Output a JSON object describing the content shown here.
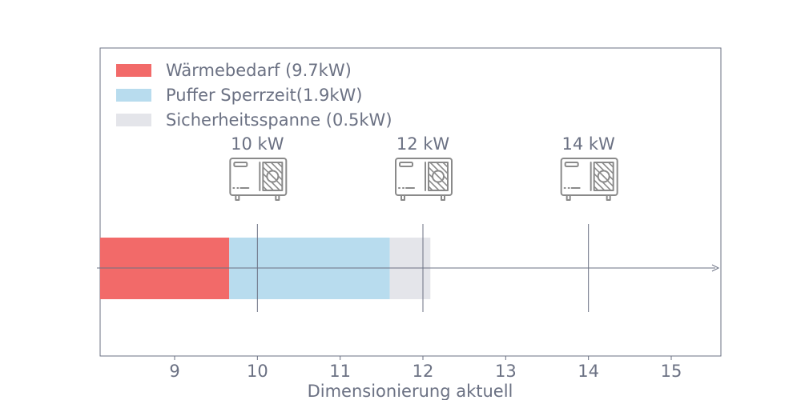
{
  "chart_data": {
    "type": "bar",
    "orientation": "horizontal",
    "stacked": true,
    "xlabel": "Dimensionierung aktuell",
    "ylabel": "",
    "xlim": [
      8.1,
      15.6
    ],
    "xticks": [
      {
        "value": 9,
        "label": "9"
      },
      {
        "value": 10,
        "label": "10"
      },
      {
        "value": 11,
        "label": "11"
      },
      {
        "value": 12,
        "label": "12"
      },
      {
        "value": 13,
        "label": "13"
      },
      {
        "value": 14,
        "label": "14"
      },
      {
        "value": 15,
        "label": "15"
      }
    ],
    "series": [
      {
        "name": "Wärmebedarf (9.7kW)",
        "start": 8.1,
        "end": 9.66,
        "color": "#f26a69"
      },
      {
        "name": "Puffer Sperrzeit(1.9kW)",
        "start": 9.66,
        "end": 11.6,
        "color": "#b8dcee"
      },
      {
        "name": "Sicherheitsspanne (0.5kW)",
        "start": 11.6,
        "end": 12.09,
        "color": "#e4e5ea"
      }
    ],
    "markers": [
      {
        "value": 10,
        "label": "10 kW",
        "icon": "heat-pump-icon"
      },
      {
        "value": 12,
        "label": "12 kW",
        "icon": "heat-pump-icon"
      },
      {
        "value": 14,
        "label": "14 kW",
        "icon": "heat-pump-icon"
      }
    ],
    "legend_position": "top-left",
    "grid": false,
    "axis_color": "#6b7183"
  }
}
